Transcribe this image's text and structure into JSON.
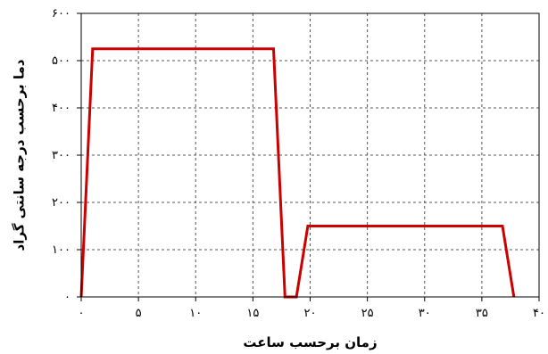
{
  "chart_data": {
    "type": "line",
    "title": "",
    "xlabel": "زمان برحسب ساعت",
    "ylabel": "دما برحسب درجه سانتی گراد",
    "xlim": [
      0,
      40
    ],
    "ylim": [
      0,
      600
    ],
    "x_ticks": [
      0,
      5,
      10,
      15,
      20,
      25,
      30,
      35,
      40
    ],
    "y_ticks": [
      0,
      100,
      200,
      300,
      400,
      500,
      600
    ],
    "x_tick_labels": [
      "۰",
      "۵",
      "۱۰",
      "۱۵",
      "۲۰",
      "۲۵",
      "۳۰",
      "۳۵",
      "۴۰"
    ],
    "y_tick_labels": [
      "۰",
      "۱۰۰",
      "۲۰۰",
      "۳۰۰",
      "۴۰۰",
      "۵۰۰",
      "۶۰۰"
    ],
    "grid": true,
    "series": [
      {
        "color": "#cc0000",
        "x": [
          0,
          1,
          16.8,
          17.8,
          18.8,
          19.8,
          36.8,
          37.8
        ],
        "y": [
          0,
          525,
          525,
          0,
          0,
          150,
          150,
          0
        ]
      }
    ]
  }
}
